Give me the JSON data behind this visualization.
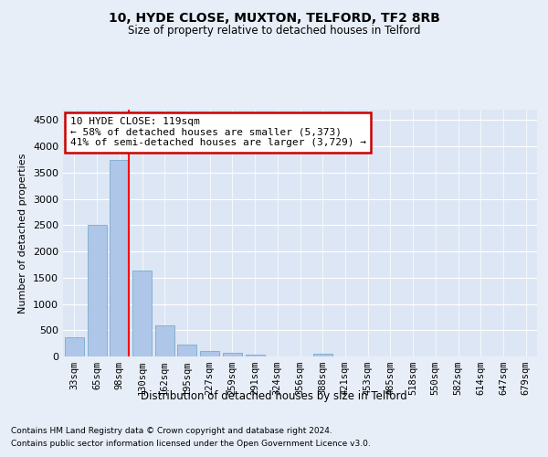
{
  "title1": "10, HYDE CLOSE, MUXTON, TELFORD, TF2 8RB",
  "title2": "Size of property relative to detached houses in Telford",
  "xlabel": "Distribution of detached houses by size in Telford",
  "ylabel": "Number of detached properties",
  "footnote1": "Contains HM Land Registry data © Crown copyright and database right 2024.",
  "footnote2": "Contains public sector information licensed under the Open Government Licence v3.0.",
  "bar_labels": [
    "33sqm",
    "65sqm",
    "98sqm",
    "130sqm",
    "162sqm",
    "195sqm",
    "227sqm",
    "259sqm",
    "291sqm",
    "324sqm",
    "356sqm",
    "388sqm",
    "421sqm",
    "453sqm",
    "485sqm",
    "518sqm",
    "550sqm",
    "582sqm",
    "614sqm",
    "647sqm",
    "679sqm"
  ],
  "bar_values": [
    370,
    2500,
    3750,
    1640,
    590,
    230,
    110,
    65,
    40,
    0,
    0,
    50,
    0,
    0,
    0,
    0,
    0,
    0,
    0,
    0,
    0
  ],
  "red_line_index": 2,
  "bar_color": "#aec6e8",
  "bar_edge_color": "#7aaad0",
  "annotation_text": "10 HYDE CLOSE: 119sqm\n← 58% of detached houses are smaller (5,373)\n41% of semi-detached houses are larger (3,729) →",
  "annotation_box_facecolor": "#ffffff",
  "annotation_box_edge": "#cc0000",
  "ylim": [
    0,
    4700
  ],
  "yticks": [
    0,
    500,
    1000,
    1500,
    2000,
    2500,
    3000,
    3500,
    4000,
    4500
  ],
  "bg_color": "#e8eef8",
  "plot_bg_color": "#dde6f4",
  "grid_color": "#ffffff"
}
